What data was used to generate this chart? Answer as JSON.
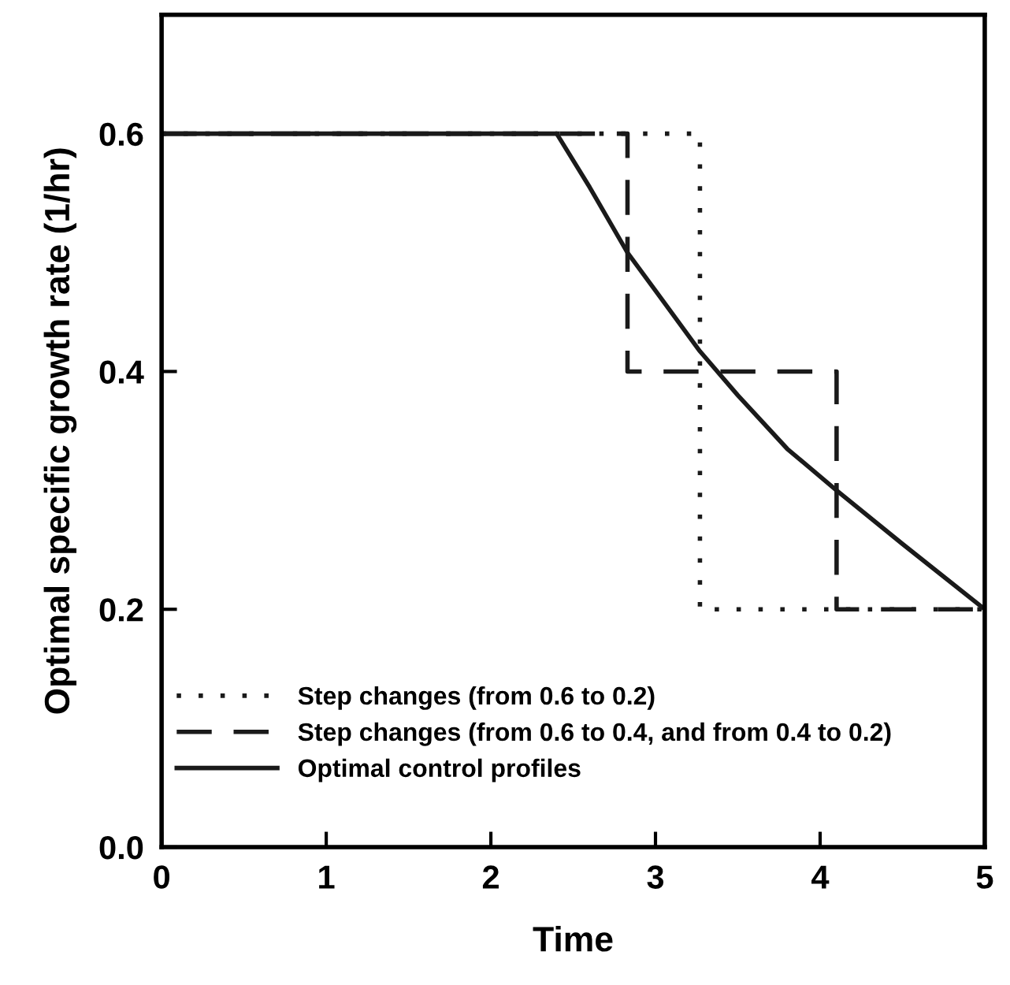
{
  "chart_data": {
    "type": "line",
    "xlabel": "Time",
    "ylabel": "Optimal specific growth rate (1/hr)",
    "xlim": [
      0,
      5
    ],
    "ylim": [
      0,
      0.7
    ],
    "xticks": [
      0,
      1,
      2,
      3,
      4,
      5
    ],
    "yticks": [
      {
        "value": 0,
        "label": "0.0"
      },
      {
        "value": 0.2,
        "label": "0.2"
      },
      {
        "value": 0.4,
        "label": "0.4"
      },
      {
        "value": 0.6,
        "label": "0.6"
      }
    ],
    "series": [
      {
        "name": "Step changes (from 0.6 to 0.2)",
        "type": "step",
        "line_style": "dotted",
        "color": "#1a1a1a",
        "x": [
          0,
          3.27,
          5
        ],
        "values": [
          0.6,
          0.2,
          0.2
        ]
      },
      {
        "name": "Step changes (from 0.6 to 0.4, and from 0.4 to 0.2)",
        "type": "step",
        "line_style": "dashed",
        "color": "#1a1a1a",
        "x": [
          0,
          2.83,
          4.1,
          5
        ],
        "values": [
          0.6,
          0.4,
          0.2,
          0.2
        ]
      },
      {
        "name": "Optimal control profiles",
        "line_style": "solid",
        "color": "#1a1a1a",
        "x": [
          0,
          2.4,
          2.6,
          2.83,
          3.0,
          3.27,
          3.5,
          3.8,
          4.1,
          4.5,
          5.0
        ],
        "values": [
          0.6,
          0.6,
          0.555,
          0.5,
          0.468,
          0.417,
          0.38,
          0.335,
          0.3,
          0.255,
          0.2
        ]
      }
    ],
    "legend": "bottom left",
    "grid": false,
    "marker": "none"
  }
}
